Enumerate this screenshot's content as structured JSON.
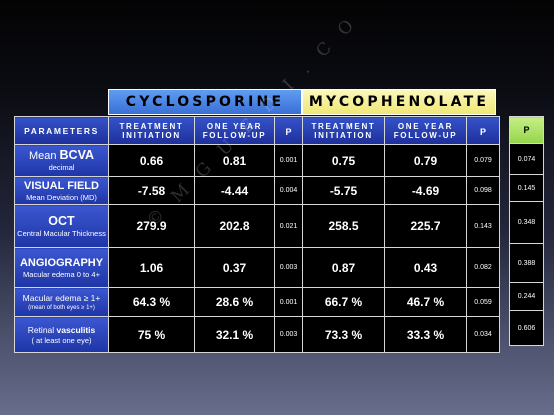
{
  "drugs": {
    "cyclosporine": "CYCLOSPORINE",
    "mycophenolate": "MYCOPHENOLATE"
  },
  "header": {
    "parameters": "PARAMETERS",
    "treatment_initiation": [
      "TREATMENT",
      "INITIATION"
    ],
    "one_year_follow_up": [
      "ONE YEAR",
      "FOLLOW-UP"
    ],
    "p": "P"
  },
  "rows": [
    {
      "label_parts": [
        "Mean ",
        "BCVA"
      ],
      "label_sub": "decimal",
      "cyclo_initiation": "0.66",
      "cyclo_followup": "0.81",
      "cyclo_p": "0.001",
      "myco_initiation": "0.75",
      "myco_followup": "0.79",
      "myco_p": "0.079",
      "comparison_p": "0.074"
    },
    {
      "label_parts": [
        "VISUAL FIELD"
      ],
      "label_sub": "Mean Deviation (MD)",
      "cyclo_initiation": "-7.58",
      "cyclo_followup": "-4.44",
      "cyclo_p": "0.004",
      "myco_initiation": "-5.75",
      "myco_followup": "-4.69",
      "myco_p": "0.098",
      "comparison_p": "0.145"
    },
    {
      "label_parts": [
        "OCT"
      ],
      "label_sub": "Central Macular Thickness",
      "cyclo_initiation": "279.9",
      "cyclo_followup": "202.8",
      "cyclo_p": "0.021",
      "myco_initiation": "258.5",
      "myco_followup": "225.7",
      "myco_p": "0.143",
      "comparison_p": "0.348"
    },
    {
      "label_parts": [
        "ANGIOGRAPHY"
      ],
      "label_sub": "Macular edema 0 to 4+",
      "cyclo_initiation": "1.06",
      "cyclo_followup": "0.37",
      "cyclo_p": "0.003",
      "myco_initiation": "0.87",
      "myco_followup": "0.43",
      "myco_p": "0.082",
      "comparison_p": "0.388"
    },
    {
      "label_parts": [
        "Macular edema ≥ 1+"
      ],
      "label_sub": "(mean of both eyes ≥ 1+)",
      "cyclo_initiation": "64.3 %",
      "cyclo_followup": "28.6 %",
      "cyclo_p": "0.001",
      "myco_initiation": "66.7 %",
      "myco_followup": "46.7 %",
      "myco_p": "0.059",
      "comparison_p": "0.244"
    },
    {
      "label_parts": [
        "Retinal ",
        "vasculitis"
      ],
      "label_sub": "( at least one eye)",
      "cyclo_initiation": "75 %",
      "cyclo_followup": "32.1 %",
      "cyclo_p": "0.003",
      "myco_initiation": "73.3 %",
      "myco_followup": "33.3 %",
      "myco_p": "0.034",
      "comparison_p": "0.606"
    }
  ],
  "comparison_header": "P",
  "watermark": "© M G U E D I . C O",
  "colors": {
    "cyclosporine_header": "#4a86e8",
    "mycophenolate_header": "#f5f0a0",
    "comparison_header": "#aee36a",
    "label_cells": "#2b43bc",
    "value_cells": "#000000"
  }
}
